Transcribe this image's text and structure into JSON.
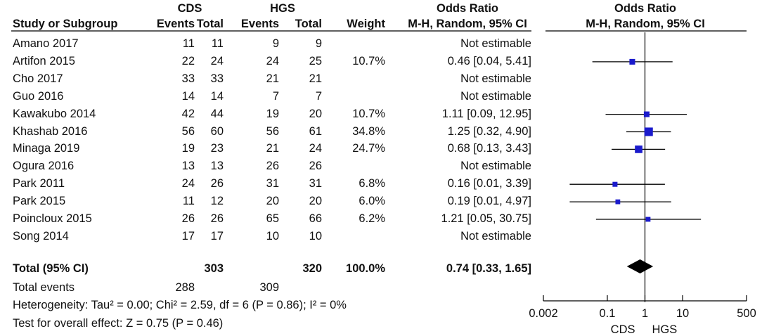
{
  "headers": {
    "group1": "CDS",
    "group2": "HGS",
    "study": "Study or Subgroup",
    "events1": "Events",
    "total1": "Total",
    "events2": "Events",
    "total2": "Total",
    "weight": "Weight",
    "or_title": "Odds Ratio",
    "or_method": "M-H, Random, 95% CI",
    "plot_title": "Odds Ratio",
    "plot_method": "M-H, Random, 95% CI"
  },
  "studies": [
    {
      "name": "Amano 2017",
      "e1": "11",
      "t1": "11",
      "e2": "9",
      "t2": "9",
      "weight": "",
      "or_text": "Not estimable"
    },
    {
      "name": "Artifon 2015",
      "e1": "22",
      "t1": "24",
      "e2": "24",
      "t2": "25",
      "weight": "10.7%",
      "or_text": "0.46 [0.04, 5.41]"
    },
    {
      "name": "Cho 2017",
      "e1": "33",
      "t1": "33",
      "e2": "21",
      "t2": "21",
      "weight": "",
      "or_text": "Not estimable"
    },
    {
      "name": "Guo 2016",
      "e1": "14",
      "t1": "14",
      "e2": "7",
      "t2": "7",
      "weight": "",
      "or_text": "Not estimable"
    },
    {
      "name": "Kawakubo 2014",
      "e1": "42",
      "t1": "44",
      "e2": "19",
      "t2": "20",
      "weight": "10.7%",
      "or_text": "1.11 [0.09, 12.95]"
    },
    {
      "name": "Khashab 2016",
      "e1": "56",
      "t1": "60",
      "e2": "56",
      "t2": "61",
      "weight": "34.8%",
      "or_text": "1.25 [0.32, 4.90]"
    },
    {
      "name": "Minaga 2019",
      "e1": "19",
      "t1": "23",
      "e2": "21",
      "t2": "24",
      "weight": "24.7%",
      "or_text": "0.68 [0.13, 3.43]"
    },
    {
      "name": "Ogura 2016",
      "e1": "13",
      "t1": "13",
      "e2": "26",
      "t2": "26",
      "weight": "",
      "or_text": "Not estimable"
    },
    {
      "name": "Park 2011",
      "e1": "24",
      "t1": "26",
      "e2": "31",
      "t2": "31",
      "weight": "6.8%",
      "or_text": "0.16 [0.01, 3.39]"
    },
    {
      "name": "Park 2015",
      "e1": "11",
      "t1": "12",
      "e2": "20",
      "t2": "20",
      "weight": "6.0%",
      "or_text": "0.19 [0.01, 4.97]"
    },
    {
      "name": "Poincloux 2015",
      "e1": "26",
      "t1": "26",
      "e2": "65",
      "t2": "66",
      "weight": "6.2%",
      "or_text": "1.21 [0.05, 30.75]"
    },
    {
      "name": "Song 2014",
      "e1": "17",
      "t1": "17",
      "e2": "10",
      "t2": "10",
      "weight": "",
      "or_text": "Not estimable"
    }
  ],
  "total": {
    "label": "Total (95% CI)",
    "t1": "303",
    "t2": "320",
    "weight": "100.0%",
    "or_text": "0.74 [0.33, 1.65]"
  },
  "total_events": {
    "label": "Total events",
    "e1": "288",
    "e2": "309"
  },
  "heterogeneity": "Heterogeneity: Tau² = 0.00; Chi² = 2.59, df = 6 (P = 0.86); I² = 0%",
  "overall_effect": "Test for overall effect: Z = 0.75 (P = 0.46)",
  "axis": {
    "favours_left": "CDS",
    "favours_right": "HGS"
  },
  "chart_data": {
    "type": "forest",
    "log_scale": true,
    "xlim": [
      0.002,
      500
    ],
    "ticks": [
      {
        "value": 0.002,
        "label": "0.002"
      },
      {
        "value": 0.1,
        "label": "0.1"
      },
      {
        "value": 1,
        "label": "1"
      },
      {
        "value": 10,
        "label": "10"
      },
      {
        "value": 500,
        "label": "500"
      }
    ],
    "reference_line": 1,
    "marker_color": "#1a1acc",
    "diamond_color": "#000000",
    "rows": [
      {
        "study": "Amano 2017",
        "or": null,
        "lo": null,
        "hi": null,
        "weight": 0
      },
      {
        "study": "Artifon 2015",
        "or": 0.46,
        "lo": 0.04,
        "hi": 5.41,
        "weight": 10.7
      },
      {
        "study": "Cho 2017",
        "or": null,
        "lo": null,
        "hi": null,
        "weight": 0
      },
      {
        "study": "Guo 2016",
        "or": null,
        "lo": null,
        "hi": null,
        "weight": 0
      },
      {
        "study": "Kawakubo 2014",
        "or": 1.11,
        "lo": 0.09,
        "hi": 12.95,
        "weight": 10.7
      },
      {
        "study": "Khashab 2016",
        "or": 1.25,
        "lo": 0.32,
        "hi": 4.9,
        "weight": 34.8
      },
      {
        "study": "Minaga 2019",
        "or": 0.68,
        "lo": 0.13,
        "hi": 3.43,
        "weight": 24.7
      },
      {
        "study": "Ogura 2016",
        "or": null,
        "lo": null,
        "hi": null,
        "weight": 0
      },
      {
        "study": "Park 2011",
        "or": 0.16,
        "lo": 0.01,
        "hi": 3.39,
        "weight": 6.8
      },
      {
        "study": "Park 2015",
        "or": 0.19,
        "lo": 0.01,
        "hi": 4.97,
        "weight": 6.0
      },
      {
        "study": "Poincloux 2015",
        "or": 1.21,
        "lo": 0.05,
        "hi": 30.75,
        "weight": 6.2
      },
      {
        "study": "Song 2014",
        "or": null,
        "lo": null,
        "hi": null,
        "weight": 0
      }
    ],
    "pooled": {
      "or": 0.74,
      "lo": 0.33,
      "hi": 1.65
    }
  }
}
